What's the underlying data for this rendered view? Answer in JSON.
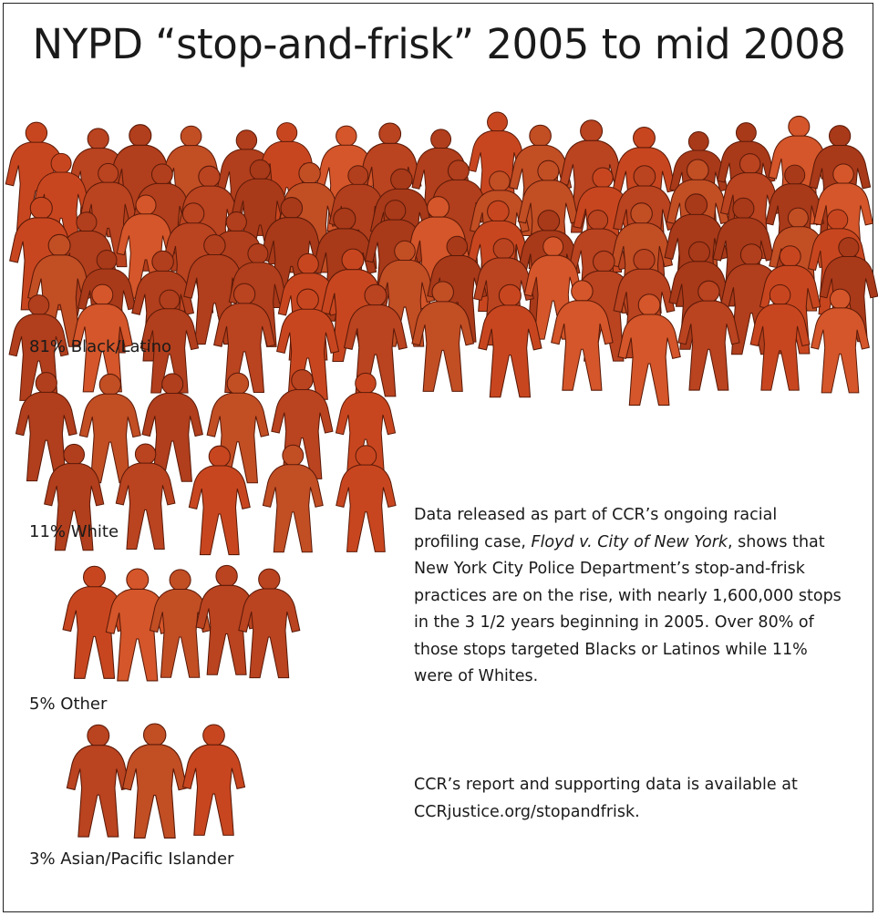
{
  "title": "NYPD “stop-and-frisk” 2005 to mid 2008",
  "colors": {
    "figure_palette": [
      "#c8461f",
      "#b13e1c",
      "#d4562a",
      "#a83919",
      "#c24e24",
      "#ba4320"
    ],
    "outline": "#5a1a08",
    "text": "#1a1a1a"
  },
  "icon": "person-figure-icon",
  "chart_data": {
    "type": "pictograph",
    "title": "NYPD “stop-and-frisk” 2005 to mid 2008",
    "unit": "%",
    "categories": [
      "Black/Latino",
      "White",
      "Other",
      "Asian/Pacific Islander"
    ],
    "values": [
      81,
      11,
      5,
      3
    ],
    "labels": [
      "81% Black/Latino",
      "11% White",
      "5% Other",
      "3% Asian/Pacific Islander"
    ]
  },
  "description": {
    "p1_before": "Data released as part of CCR’s ongoing racial profiling case, ",
    "p1_case": "Floyd v. City of New York",
    "p1_after": ", shows that New York City Police Department’s stop-and-frisk practices are on the rise, with nearly 1,600,000 stops in the 3 1/2 years beginning in 2005. Over 80% of those stops targeted Blacks or Latinos while 11% were of Whites.",
    "p2": "CCR’s report and supporting data is available at CCRjustice.org/stopandfrisk."
  }
}
